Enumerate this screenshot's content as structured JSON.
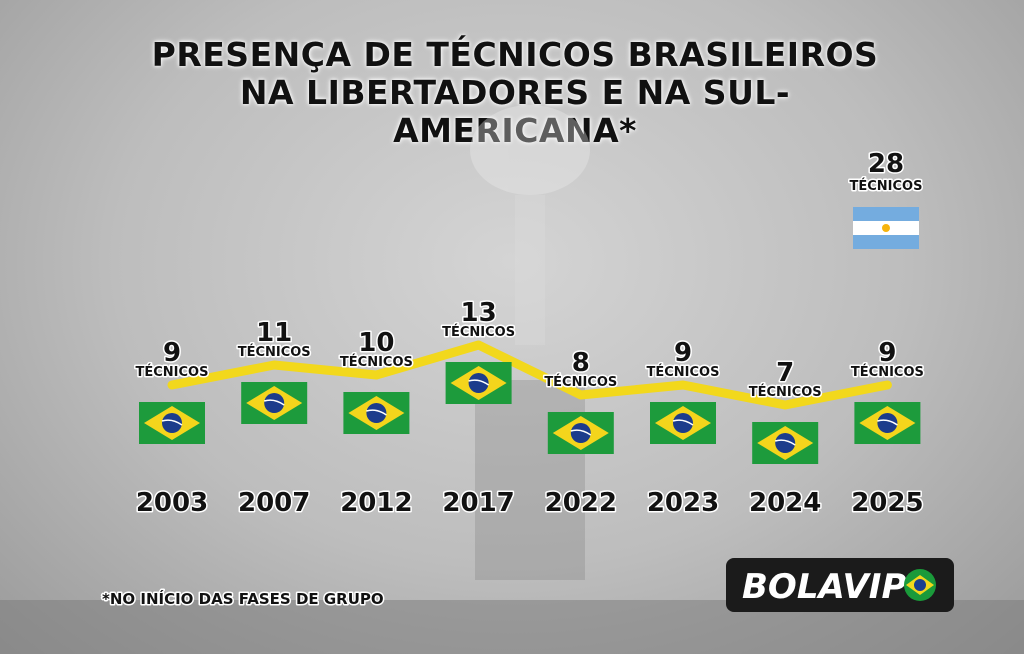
{
  "chart_data": {
    "type": "line",
    "title": "PRESENÇA DE TÉCNICOS BRASILEIROS NA LIBERTADORES E NA SUL-AMERICANA*",
    "categories": [
      "2003",
      "2007",
      "2012",
      "2017",
      "2022",
      "2023",
      "2024",
      "2025"
    ],
    "values": [
      9,
      11,
      10,
      13,
      8,
      9,
      7,
      9
    ],
    "unit_label": "TÉCNICOS",
    "color": "#f2d81c",
    "annotation": {
      "value": 28,
      "label": "TÉCNICOS"
    },
    "footnote": "*NO INÍCIO DAS FASES DE GRUPO",
    "logo": "BOLAVIP"
  }
}
